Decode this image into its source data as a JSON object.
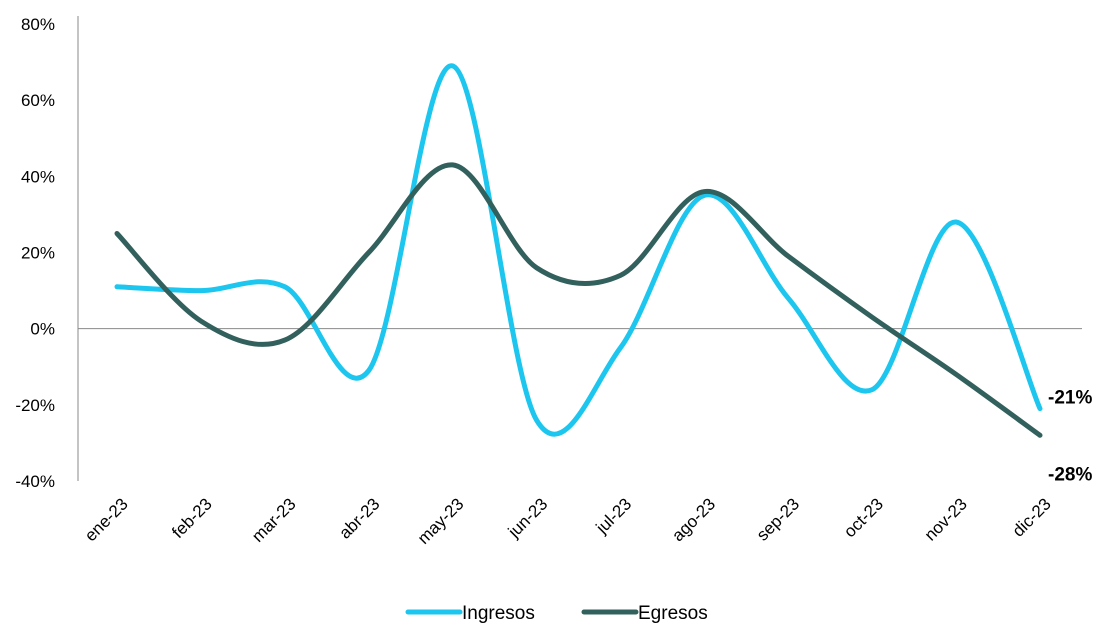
{
  "chart_data": {
    "type": "line",
    "title": "",
    "xlabel": "",
    "ylabel": "",
    "categories": [
      "ene-23",
      "feb-23",
      "mar-23",
      "abr-23",
      "may-23",
      "jun-23",
      "jul-23",
      "ago-23",
      "sep-23",
      "oct-23",
      "nov-23",
      "dic-23"
    ],
    "series": [
      {
        "name": "Ingresos",
        "color": "#1CC6EE",
        "values": [
          11,
          10,
          11,
          -11,
          69,
          -24,
          -5,
          35,
          8,
          -16,
          28,
          -21
        ]
      },
      {
        "name": "Egresos",
        "color": "#32605D",
        "values": [
          25,
          2,
          -3,
          20,
          43,
          16,
          14,
          36,
          19,
          3,
          -12,
          -28
        ]
      }
    ],
    "end_labels": [
      "-21%",
      "-28%"
    ],
    "ylim": [
      -40,
      80
    ],
    "y_ticks": [
      -40,
      -20,
      0,
      20,
      40,
      60,
      80
    ],
    "y_tick_labels": [
      "-40%",
      "-20%",
      "0%",
      "20%",
      "40%",
      "60%",
      "80%"
    ],
    "grid": false,
    "legend_position": "bottom-center"
  }
}
